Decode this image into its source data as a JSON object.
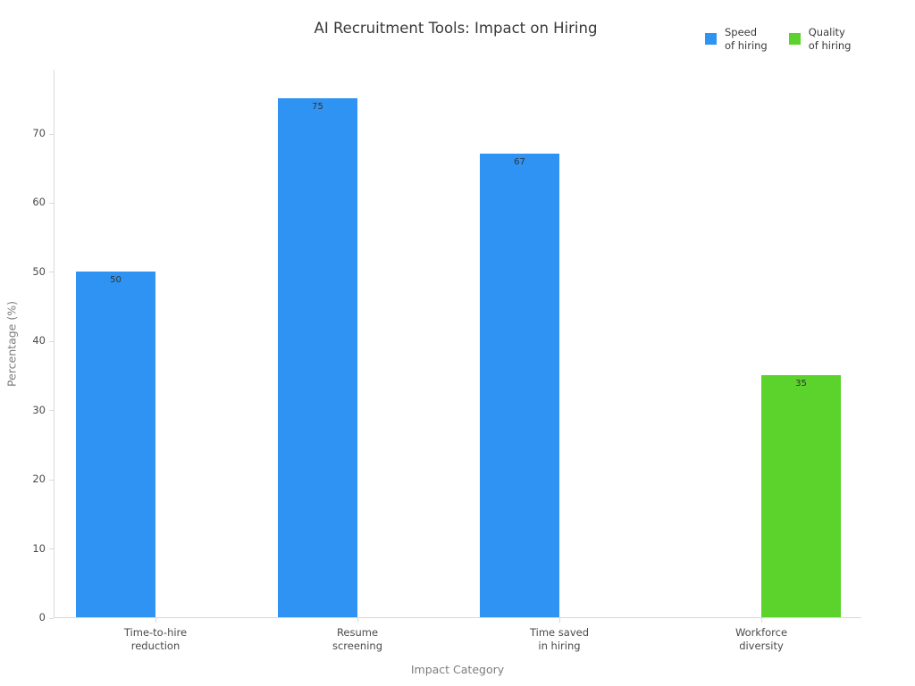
{
  "title": "AI Recruitment Tools: Impact on Hiring",
  "legend": {
    "items": [
      {
        "label": "Speed\nof hiring",
        "color": "#2f93f3"
      },
      {
        "label": "Quality\nof hiring",
        "color": "#5cd32d"
      }
    ]
  },
  "chart_data": {
    "type": "bar",
    "title": "AI Recruitment Tools: Impact on Hiring",
    "xlabel": "Impact Category",
    "ylabel": "Percentage (%)",
    "categories": [
      [
        "Time-to-hire",
        "reduction"
      ],
      [
        "Resume",
        "screening"
      ],
      [
        "Time saved",
        "in hiring"
      ],
      [
        "Workforce",
        "diversity"
      ]
    ],
    "series": [
      {
        "name": "Speed of hiring",
        "color": "#2f93f3",
        "values": [
          50,
          75,
          67,
          null
        ]
      },
      {
        "name": "Quality of hiring",
        "color": "#5cd32d",
        "values": [
          null,
          null,
          null,
          35
        ]
      }
    ],
    "ylim": [
      0,
      79.3
    ],
    "yticks": [
      0,
      10,
      20,
      30,
      40,
      50,
      60,
      70
    ],
    "grid": false,
    "legend_position": "top-right",
    "bar_mode": "grouped"
  }
}
